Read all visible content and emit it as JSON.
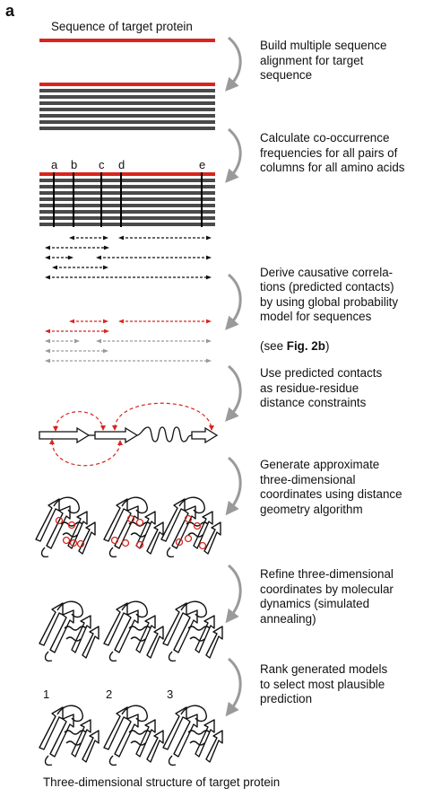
{
  "panel_label": "a",
  "sequence_title": "Sequence of target protein",
  "bottom_title": "Three-dimensional structure of target protein",
  "steps": [
    "Build multiple sequence\nalignment for target\nsequence",
    "Calculate co-occurrence\nfrequencies for all pairs of\ncolumns for all amino acids",
    "Derive causative correla-\ntions (predicted contacts)\nby using global probability\nmodel for sequences",
    "Use predicted contacts\nas residue-residue\ndistance constraints",
    "Generate approximate\nthree-dimensional\ncoordinates using distance\ngeometry algorithm",
    "Refine three-dimensional\ncoordinates by molecular\ndynamics (simulated\nannealing)",
    "Rank generated models\nto select most plausible\nprediction"
  ],
  "step3_ref": {
    "prefix": "(see ",
    "bold": "Fig. 2b",
    "suffix": ")"
  },
  "column_letters": [
    "a",
    "b",
    "c",
    "d",
    "e"
  ],
  "model_numbers": [
    "1",
    "2",
    "3"
  ],
  "colors": {
    "red": "#d9251d",
    "gray_bar": "#4a4a4a",
    "arrow_gray": "#9a9a9a",
    "black": "#111111"
  }
}
